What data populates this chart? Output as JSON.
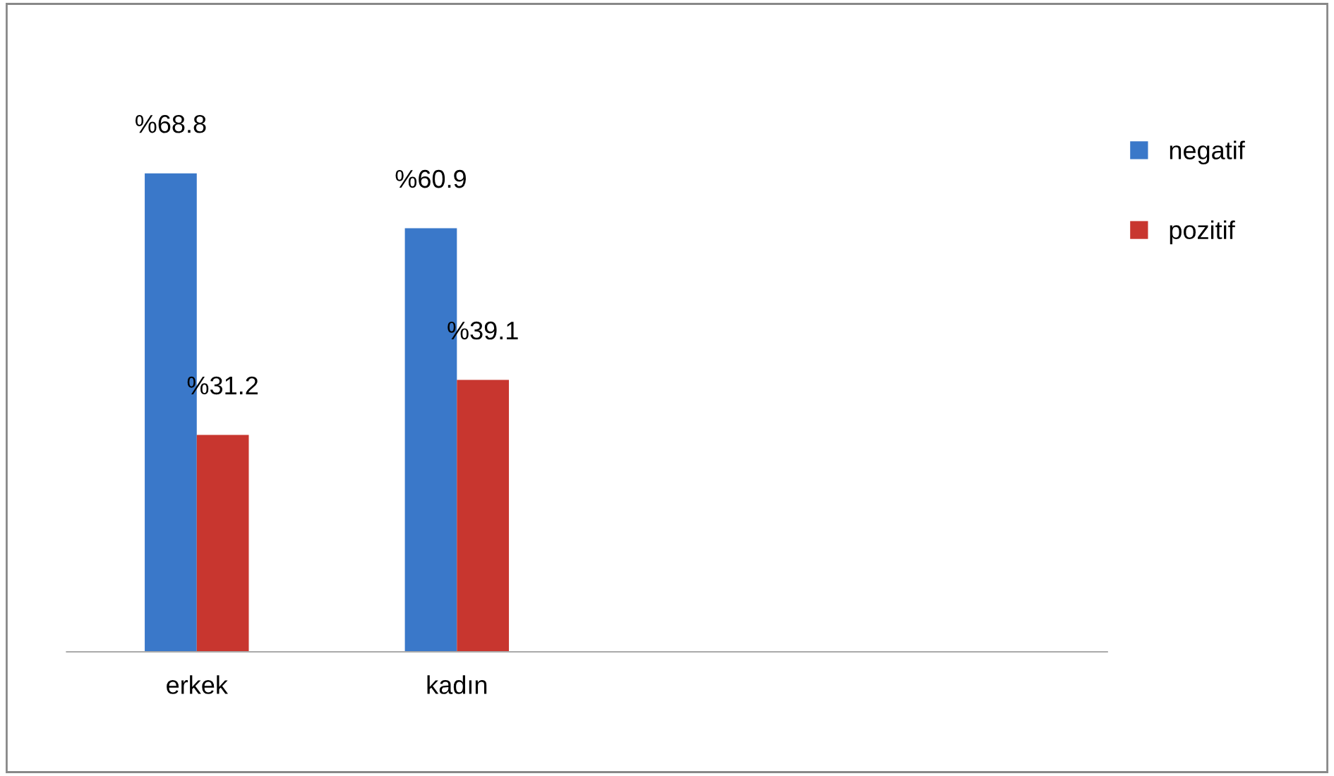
{
  "chart_data": {
    "type": "bar",
    "categories": [
      "erkek",
      "kadın"
    ],
    "series": [
      {
        "name": "negatif",
        "color": "#3a78c9",
        "values": [
          68.8,
          60.9
        ],
        "value_labels": [
          "%68.8",
          "%60.9"
        ]
      },
      {
        "name": "pozitif",
        "color": "#c8362f",
        "values": [
          31.2,
          39.1
        ],
        "value_labels": [
          "%31.2",
          "%39.1"
        ]
      }
    ],
    "legend": "right",
    "grid": false
  }
}
